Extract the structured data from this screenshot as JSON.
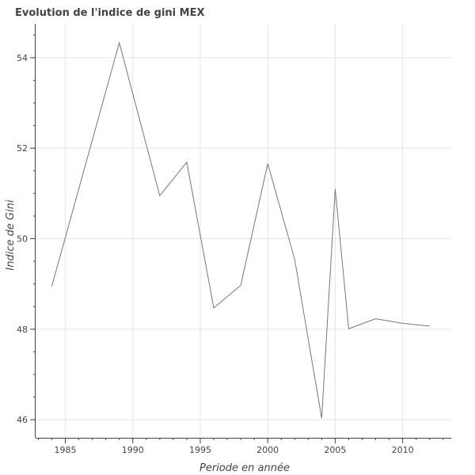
{
  "chart_data": {
    "type": "line",
    "title": "Evolution de l'indice de gini MEX",
    "xlabel": "Periode en année",
    "ylabel": "Indice de Gini",
    "x_ticks": [
      1985,
      1990,
      1995,
      2000,
      2005,
      2010
    ],
    "y_ticks": [
      46,
      48,
      50,
      52,
      54
    ],
    "xlim": [
      1982.8,
      2013.6
    ],
    "ylim": [
      45.6,
      54.75
    ],
    "grid": true,
    "legend": "none",
    "series": [
      {
        "color": "#777777",
        "x": [
          1984,
          1989,
          1992,
          1994,
          1996,
          1998,
          2000,
          2002,
          2004,
          2005,
          2006,
          2008,
          2010,
          2012
        ],
        "y": [
          48.95,
          54.33,
          50.95,
          51.69,
          48.47,
          48.97,
          51.66,
          49.54,
          46.03,
          51.1,
          48.01,
          48.23,
          48.13,
          48.07
        ]
      }
    ]
  }
}
